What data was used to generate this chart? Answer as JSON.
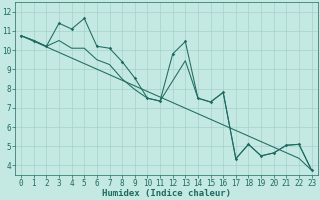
{
  "xlabel": "Humidex (Indice chaleur)",
  "xlim": [
    -0.5,
    23.5
  ],
  "ylim": [
    3.5,
    12.5
  ],
  "yticks": [
    4,
    5,
    6,
    7,
    8,
    9,
    10,
    11,
    12
  ],
  "xticks": [
    0,
    1,
    2,
    3,
    4,
    5,
    6,
    7,
    8,
    9,
    10,
    11,
    12,
    13,
    14,
    15,
    16,
    17,
    18,
    19,
    20,
    21,
    22,
    23
  ],
  "bg_color": "#c4e8e2",
  "grid_color": "#9ecec6",
  "line_color": "#1e6b61",
  "line1_y": [
    10.75,
    10.5,
    10.2,
    11.4,
    11.1,
    11.65,
    10.2,
    10.1,
    9.4,
    8.55,
    7.5,
    7.35,
    9.8,
    10.45,
    7.5,
    7.3,
    7.8,
    4.35,
    5.1,
    4.5,
    4.65,
    5.05,
    5.1,
    3.75
  ],
  "line2_y": [
    10.75,
    10.5,
    10.2,
    10.5,
    10.1,
    10.1,
    9.5,
    9.25,
    8.5,
    7.95,
    7.5,
    7.35,
    8.4,
    9.45,
    7.5,
    7.3,
    7.8,
    4.35,
    5.1,
    4.5,
    4.65,
    5.05,
    5.1,
    3.75
  ],
  "line3_y": [
    10.75,
    10.46,
    10.17,
    9.88,
    9.59,
    9.3,
    9.01,
    8.72,
    8.43,
    8.14,
    7.85,
    7.56,
    7.27,
    6.98,
    6.69,
    6.4,
    6.11,
    5.82,
    5.53,
    5.24,
    4.95,
    4.66,
    4.37,
    3.75
  ],
  "fontsize_label": 6.5,
  "fontsize_tick": 5.5,
  "fontsize_ylabel": 6.5
}
